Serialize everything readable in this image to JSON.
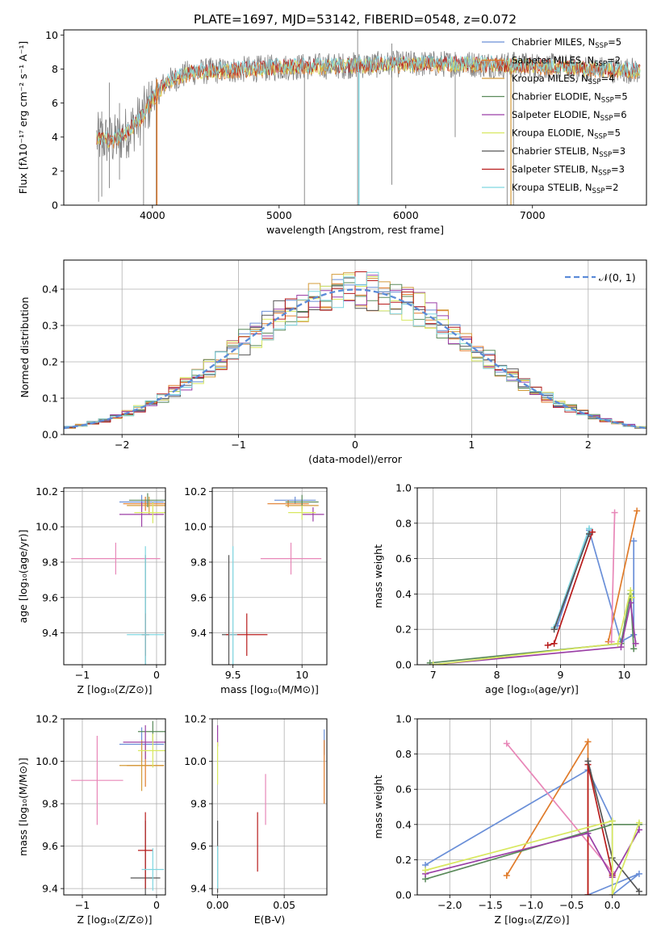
{
  "figure": {
    "title": "PLATE=1697, MJD=53142, FIBERID=0548, z=0.072"
  },
  "legend_entries": [
    {
      "label": "Chabrier MILES, N",
      "sub": "SSP",
      "tail": "=5",
      "color": "#6a8fd8"
    },
    {
      "label": "Salpeter MILES, N",
      "sub": "SSP",
      "tail": "=2",
      "color": "#e07b2a"
    },
    {
      "label": "Kroupa MILES, N",
      "sub": "SSP",
      "tail": "=4",
      "color": "#d49b3a"
    },
    {
      "label": "Chabrier ELODIE, N",
      "sub": "SSP",
      "tail": "=5",
      "color": "#5a8a5a"
    },
    {
      "label": "Salpeter ELODIE, N",
      "sub": "SSP",
      "tail": "=6",
      "color": "#9b3fa6"
    },
    {
      "label": "Kroupa ELODIE, N",
      "sub": "SSP",
      "tail": "=5",
      "color": "#d8e860"
    },
    {
      "label": "Chabrier STELIB, N",
      "sub": "SSP",
      "tail": "=3",
      "color": "#555555"
    },
    {
      "label": "Salpeter STELIB, N",
      "sub": "SSP",
      "tail": "=3",
      "color": "#b81c1c"
    },
    {
      "label": "Kroupa STELIB, N",
      "sub": "SSP",
      "tail": "=2",
      "color": "#7fd6e0"
    }
  ],
  "chart_data": [
    {
      "id": "spectrum",
      "type": "line",
      "xlabel": "wavelength [Angstrom, rest frame]",
      "ylabel": "Flux [fλ10⁻¹⁷ erg cm⁻² s⁻¹ A⁻¹]",
      "xlim": [
        3300,
        7900
      ],
      "ylim": [
        0,
        10.3
      ],
      "xticks": [
        4000,
        5000,
        6000,
        7000
      ],
      "yticks": [
        0,
        2,
        4,
        6,
        8,
        10
      ],
      "grid": false,
      "legend_position": "top-right",
      "continuum": {
        "x": [
          3560,
          3700,
          3800,
          3900,
          4000,
          4100,
          4300,
          4500,
          4800,
          5000,
          5500,
          6000,
          6500,
          7000,
          7500,
          7850
        ],
        "y": [
          3.9,
          3.8,
          4.3,
          5.0,
          6.2,
          7.2,
          7.8,
          7.9,
          8.0,
          8.1,
          8.2,
          8.3,
          8.3,
          8.2,
          8.0,
          7.9
        ]
      },
      "spikes": [
        {
          "x": 3575,
          "y1": 0.2,
          "y2": 5.1
        },
        {
          "x": 3600,
          "y1": 0.5,
          "y2": 5.5
        },
        {
          "x": 3660,
          "y1": 1.0,
          "y2": 7.2
        },
        {
          "x": 3740,
          "y1": 1.5,
          "y2": 6.0
        },
        {
          "x": 3930,
          "y1": 0.0,
          "y2": 5.5
        },
        {
          "x": 4030,
          "y1": 0.0,
          "y2": 7.5
        },
        {
          "x": 5200,
          "y1": 0.0,
          "y2": 8.2
        },
        {
          "x": 5620,
          "y1": 0.0,
          "y2": 10.3
        },
        {
          "x": 5890,
          "y1": 1.2,
          "y2": 9.5
        },
        {
          "x": 6390,
          "y1": 4.0,
          "y2": 9.0
        },
        {
          "x": 6800,
          "y1": 0.0,
          "y2": 8.5
        },
        {
          "x": 6850,
          "y1": 0.0,
          "y2": 9.0
        }
      ]
    },
    {
      "id": "residuals",
      "type": "bar",
      "xlabel": "(data-model)/error",
      "ylabel": "Normed distribution",
      "xlim": [
        -2.5,
        2.5
      ],
      "ylim": [
        0,
        0.48
      ],
      "xticks": [
        -2,
        -1,
        0,
        1,
        2
      ],
      "yticks": [
        0.0,
        0.1,
        0.2,
        0.3,
        0.4
      ],
      "grid": true,
      "legend_label": "𝒩(0, 1)",
      "legend_position": "top-right",
      "bin_width": 0.1,
      "gaussian": {
        "mean": 0,
        "sigma": 1
      }
    },
    {
      "id": "age_vs_Z",
      "type": "scatter",
      "xlabel": "Z [log₁₀(Z/Z⊙)]",
      "ylabel": "age  [log₁₀(age/yr)]",
      "xlim": [
        -1.25,
        0.12
      ],
      "ylim": [
        9.22,
        10.22
      ],
      "xticks": [
        -1,
        0
      ],
      "yticks": [
        9.4,
        9.6,
        9.8,
        10.0,
        10.2
      ],
      "grid": true,
      "errorbars": [
        {
          "color": "#6a8fd8",
          "x": -0.2,
          "xerr": 0.3,
          "y": 10.14,
          "yerr": 0.04
        },
        {
          "color": "#e07b2a",
          "x": -0.15,
          "xerr": 0.3,
          "y": 10.13,
          "yerr": 0.04
        },
        {
          "color": "#d49b3a",
          "x": -0.1,
          "xerr": 0.3,
          "y": 10.12,
          "yerr": 0.05
        },
        {
          "color": "#5a8a5a",
          "x": -0.12,
          "xerr": 0.25,
          "y": 10.15,
          "yerr": 0.04
        },
        {
          "color": "#9b3fa6",
          "x": -0.2,
          "xerr": 0.3,
          "y": 10.07,
          "yerr": 0.07
        },
        {
          "color": "#d8e860",
          "x": -0.05,
          "xerr": 0.25,
          "y": 10.08,
          "yerr": 0.06
        },
        {
          "color": "#e887b8",
          "x": -0.55,
          "xerr": 0.6,
          "y": 9.82,
          "yerr": 0.09
        },
        {
          "color": "#555555",
          "x": -0.15,
          "xerr": 0.05,
          "y": 9.39,
          "yerr": 0.45
        },
        {
          "color": "#b81c1c",
          "x": -0.15,
          "xerr": 0.05,
          "y": 9.39,
          "yerr": 0.12
        },
        {
          "color": "#7fd6e0",
          "x": -0.15,
          "xerr": 0.25,
          "y": 9.39,
          "yerr": 0.5
        }
      ]
    },
    {
      "id": "age_vs_mass",
      "type": "scatter",
      "xlabel": "mass [log₁₀(M/M⊙)]",
      "ylabel": "",
      "xlim": [
        9.35,
        10.18
      ],
      "ylim": [
        9.22,
        10.22
      ],
      "xticks": [
        9.5,
        10.0
      ],
      "yticks": [
        9.4,
        9.6,
        9.8,
        10.0,
        10.2
      ],
      "grid": true,
      "errorbars": [
        {
          "color": "#6a8fd8",
          "x": 9.95,
          "xerr": 0.15,
          "y": 10.15,
          "yerr": 0.02
        },
        {
          "color": "#e07b2a",
          "x": 9.9,
          "xerr": 0.15,
          "y": 10.13,
          "yerr": 0.02
        },
        {
          "color": "#d49b3a",
          "x": 10.0,
          "xerr": 0.12,
          "y": 10.12,
          "yerr": 0.03
        },
        {
          "color": "#5a8a5a",
          "x": 10.0,
          "xerr": 0.12,
          "y": 10.14,
          "yerr": 0.04
        },
        {
          "color": "#9b3fa6",
          "x": 10.08,
          "xerr": 0.08,
          "y": 10.07,
          "yerr": 0.04
        },
        {
          "color": "#d8e860",
          "x": 10.0,
          "xerr": 0.1,
          "y": 10.08,
          "yerr": 0.04
        },
        {
          "color": "#e887b8",
          "x": 9.92,
          "xerr": 0.22,
          "y": 9.82,
          "yerr": 0.09
        },
        {
          "color": "#555555",
          "x": 9.47,
          "xerr": 0.05,
          "y": 9.39,
          "yerr": 0.45
        },
        {
          "color": "#b81c1c",
          "x": 9.6,
          "xerr": 0.15,
          "y": 9.39,
          "yerr": 0.12
        },
        {
          "color": "#7fd6e0",
          "x": 9.5,
          "xerr": 0.03,
          "y": 9.39,
          "yerr": 0.5
        }
      ]
    },
    {
      "id": "weight_vs_age",
      "type": "line",
      "xlabel": "age  [log₁₀(age/yr)]",
      "ylabel": "mass weight",
      "xlim": [
        6.75,
        10.35
      ],
      "ylim": [
        0,
        1.0
      ],
      "xticks": [
        7,
        8,
        9,
        10
      ],
      "yticks": [
        0.0,
        0.2,
        0.4,
        0.6,
        0.8,
        1.0
      ],
      "grid": true,
      "series": [
        {
          "color": "#6a8fd8",
          "x": [
            8.95,
            9.45,
            9.95,
            10.15,
            10.15
          ],
          "y": [
            0.22,
            0.76,
            0.13,
            0.17,
            0.7
          ]
        },
        {
          "color": "#e07b2a",
          "x": [
            9.75,
            10.2
          ],
          "y": [
            0.13,
            0.87
          ]
        },
        {
          "color": "#e887b8",
          "x": [
            9.8,
            9.85
          ],
          "y": [
            0.13,
            0.86
          ]
        },
        {
          "color": "#b81c1c",
          "x": [
            8.8,
            8.9,
            9.5
          ],
          "y": [
            0.11,
            0.12,
            0.75
          ]
        },
        {
          "color": "#7fd6e0",
          "x": [
            8.9,
            9.45
          ],
          "y": [
            0.21,
            0.77
          ]
        },
        {
          "color": "#555555",
          "x": [
            8.9,
            9.45
          ],
          "y": [
            0.2,
            0.74
          ]
        },
        {
          "color": "#5a8a5a",
          "x": [
            6.95,
            9.95,
            10.1,
            10.15
          ],
          "y": [
            0.01,
            0.12,
            0.4,
            0.09
          ]
        },
        {
          "color": "#9b3fa6",
          "x": [
            7.0,
            9.95,
            10.1,
            10.18
          ],
          "y": [
            0.0,
            0.1,
            0.35,
            0.12
          ]
        },
        {
          "color": "#d8e860",
          "x": [
            7.0,
            9.9,
            10.1,
            10.12
          ],
          "y": [
            0.0,
            0.12,
            0.42,
            0.38
          ]
        }
      ]
    },
    {
      "id": "mass_vs_Z",
      "type": "scatter",
      "xlabel": "Z [log₁₀(Z/Z⊙)]",
      "ylabel": "mass [log₁₀(M/M⊙)]",
      "xlim": [
        -1.25,
        0.12
      ],
      "ylim": [
        9.37,
        10.2
      ],
      "xticks": [
        -1,
        0
      ],
      "yticks": [
        9.4,
        9.6,
        9.8,
        10.0,
        10.2
      ],
      "grid": true,
      "errorbars": [
        {
          "color": "#6a8fd8",
          "x": -0.2,
          "xerr": 0.3,
          "y": 10.08,
          "yerr": 0.08
        },
        {
          "color": "#e07b2a",
          "x": -0.15,
          "xerr": 0.25,
          "y": 9.98,
          "yerr": 0.1
        },
        {
          "color": "#d49b3a",
          "x": -0.2,
          "xerr": 0.3,
          "y": 9.98,
          "yerr": 0.12
        },
        {
          "color": "#5a8a5a",
          "x": -0.05,
          "xerr": 0.2,
          "y": 10.14,
          "yerr": 0.05
        },
        {
          "color": "#9b3fa6",
          "x": -0.15,
          "xerr": 0.3,
          "y": 10.09,
          "yerr": 0.08
        },
        {
          "color": "#d8e860",
          "x": -0.05,
          "xerr": 0.2,
          "y": 10.05,
          "yerr": 0.08
        },
        {
          "color": "#e887b8",
          "x": -0.8,
          "xerr": 0.35,
          "y": 9.91,
          "yerr": 0.21
        },
        {
          "color": "#555555",
          "x": -0.15,
          "xerr": 0.2,
          "y": 9.45,
          "yerr": 0.27
        },
        {
          "color": "#b81c1c",
          "x": -0.15,
          "xerr": 0.1,
          "y": 9.58,
          "yerr": 0.18
        },
        {
          "color": "#7fd6e0",
          "x": -0.05,
          "xerr": 0.15,
          "y": 9.49,
          "yerr": 0.1
        }
      ]
    },
    {
      "id": "mass_vs_EBV",
      "type": "scatter",
      "xlabel": "E(B-V)",
      "ylabel": "",
      "xlim": [
        -0.004,
        0.082
      ],
      "ylim": [
        9.37,
        10.2
      ],
      "xticks": [
        0.0,
        0.05
      ],
      "xtick_labels": [
        "0.00",
        "0.05"
      ],
      "yticks": [
        9.4,
        9.6,
        9.8,
        10.0,
        10.2
      ],
      "grid": true,
      "errorbars": [
        {
          "color": "#6a8fd8",
          "x": 0.08,
          "xerr": 0,
          "y": 10.09,
          "yerr": 0.06
        },
        {
          "color": "#e07b2a",
          "x": 0.08,
          "xerr": 0,
          "y": 9.95,
          "yerr": 0.15
        },
        {
          "color": "#9b3fa6",
          "x": 0.0,
          "xerr": 0,
          "y": 10.12,
          "yerr": 0.05
        },
        {
          "color": "#d8e860",
          "x": 0.0,
          "xerr": 0,
          "y": 9.99,
          "yerr": 0.1
        },
        {
          "color": "#e887b8",
          "x": 0.036,
          "xerr": 0,
          "y": 9.82,
          "yerr": 0.12
        },
        {
          "color": "#b81c1c",
          "x": 0.03,
          "xerr": 0,
          "y": 9.62,
          "yerr": 0.14
        },
        {
          "color": "#555555",
          "x": 0.0,
          "xerr": 0,
          "y": 9.55,
          "yerr": 0.17
        },
        {
          "color": "#7fd6e0",
          "x": 0.0,
          "xerr": 0,
          "y": 9.5,
          "yerr": 0.1
        }
      ]
    },
    {
      "id": "weight_vs_Z",
      "type": "line",
      "xlabel": "Z [log₁₀(Z/Z⊙)]",
      "ylabel": "mass weight",
      "xlim": [
        -2.4,
        0.42
      ],
      "ylim": [
        0,
        1.0
      ],
      "xticks": [
        -2.0,
        -1.5,
        -1.0,
        -0.5,
        0.0
      ],
      "xtick_labels": [
        "−2.0",
        "−1.5",
        "−1.0",
        "−0.5",
        "0.0"
      ],
      "yticks": [
        0.0,
        0.2,
        0.4,
        0.6,
        0.8,
        1.0
      ],
      "grid": true,
      "series": [
        {
          "color": "#6a8fd8",
          "x": [
            -2.3,
            -0.3,
            0.0,
            0.0,
            0.33,
            -0.3
          ],
          "y": [
            0.17,
            0.71,
            0.42,
            0.0,
            0.12,
            0.0
          ]
        },
        {
          "color": "#e07b2a",
          "x": [
            -1.3,
            -0.3,
            -0.3
          ],
          "y": [
            0.11,
            0.87,
            0.0
          ]
        },
        {
          "color": "#e887b8",
          "x": [
            -1.3,
            0.0,
            0.0
          ],
          "y": [
            0.86,
            0.13,
            0.0
          ]
        },
        {
          "color": "#b81c1c",
          "x": [
            -0.3,
            -0.3,
            0.0,
            0.0
          ],
          "y": [
            0.0,
            0.74,
            0.12,
            0.11
          ]
        },
        {
          "color": "#555555",
          "x": [
            -0.3,
            0.0,
            0.33
          ],
          "y": [
            0.76,
            0.21,
            0.02
          ]
        },
        {
          "color": "#5a8a5a",
          "x": [
            -2.3,
            0.0,
            0.33
          ],
          "y": [
            0.09,
            0.4,
            0.4
          ]
        },
        {
          "color": "#9b3fa6",
          "x": [
            -2.3,
            -0.3,
            0.0,
            0.33
          ],
          "y": [
            0.12,
            0.35,
            0.1,
            0.37
          ]
        },
        {
          "color": "#d8e860",
          "x": [
            -2.3,
            0.0,
            0.0,
            0.33
          ],
          "y": [
            0.14,
            0.42,
            0.0,
            0.41
          ]
        }
      ]
    }
  ]
}
